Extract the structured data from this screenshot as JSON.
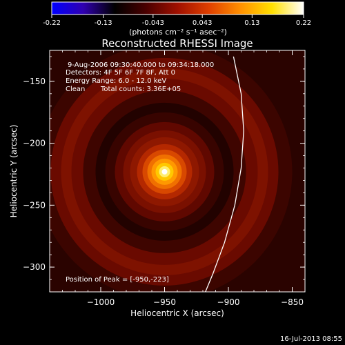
{
  "title": "Reconstructed RHESSI Image",
  "colorbar": {
    "ticks": [
      "-0.22",
      "-0.13",
      "-0.043",
      "0.043",
      "0.13",
      "0.22"
    ],
    "range": [
      -0.22,
      0.22
    ],
    "unit_label": "(photons cm⁻² s⁻¹ asec⁻²)"
  },
  "info": {
    "time_range": "9-Aug-2006 09:30:40.000 to 09:34:18.000",
    "detectors": "Detectors: 4F 5F 6F 7F 8F, Att 0",
    "energy": "Energy Range: 6.0 - 12.0 keV",
    "clean_label": "Clean",
    "total_counts": "Total counts: 3.36E+05"
  },
  "peak_label": "Position of Peak = [-950,-223]",
  "timestamp": "16-Jul-2013 08:55",
  "colors": {
    "cmap": [
      "#0000ff",
      "#3000b0",
      "#000000",
      "#4a0000",
      "#a01000",
      "#e04000",
      "#ff9000",
      "#ffe000",
      "#ffffff"
    ],
    "limb": "#ffffff"
  },
  "chart_data": {
    "type": "heatmap",
    "title": "Reconstructed RHESSI Image",
    "xlabel": "Heliocentric X (arcsec)",
    "ylabel": "Heliocentric Y (arcsec)",
    "xlim": [
      -1040,
      -840
    ],
    "ylim": [
      -320,
      -125
    ],
    "x_ticks": [
      -1000,
      -950,
      -900,
      -850
    ],
    "y_ticks": [
      -150,
      -200,
      -250,
      -300
    ],
    "peak": [
      -950,
      -223
    ],
    "value_range": [
      -0.22,
      0.22
    ],
    "solar_limb": [
      [
        -896,
        -130
      ],
      [
        -890,
        -160
      ],
      [
        -888,
        -190
      ],
      [
        -890,
        -220
      ],
      [
        -895,
        -250
      ],
      [
        -903,
        -280
      ],
      [
        -912,
        -305
      ],
      [
        -918,
        -320
      ]
    ]
  }
}
